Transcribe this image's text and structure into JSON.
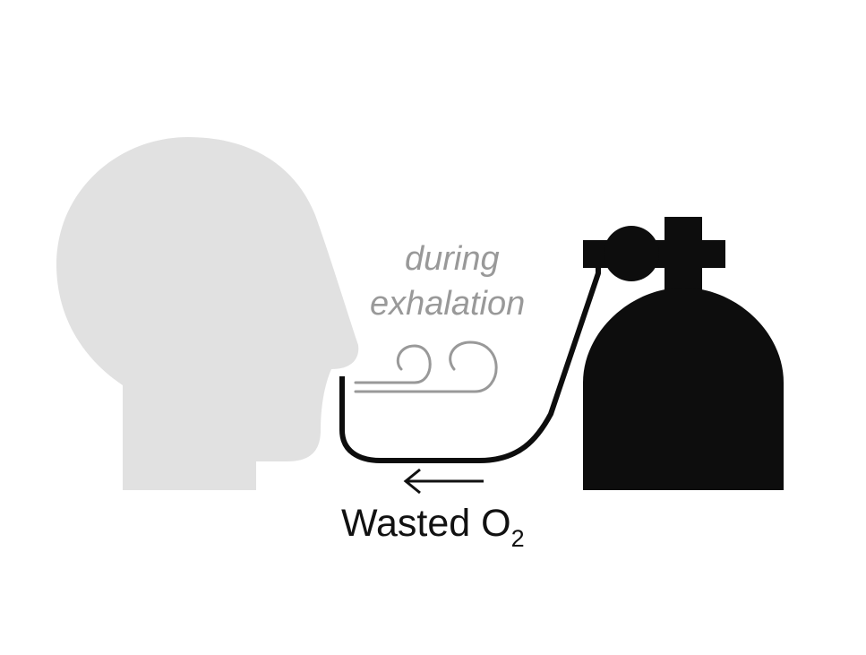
{
  "labels": {
    "line1": "during",
    "line2": "exhalation",
    "wasted_main": "Wasted O",
    "wasted_sub": "2"
  },
  "colors": {
    "head": "#e1e1e1",
    "tank": "#0d0d0d",
    "tube": "#0d0d0d",
    "breath": "#999999",
    "text_dark": "#111111"
  },
  "icons": [
    "head-silhouette-icon",
    "oxygen-tank-icon",
    "breath-swirl-icon",
    "arrow-left-icon"
  ]
}
